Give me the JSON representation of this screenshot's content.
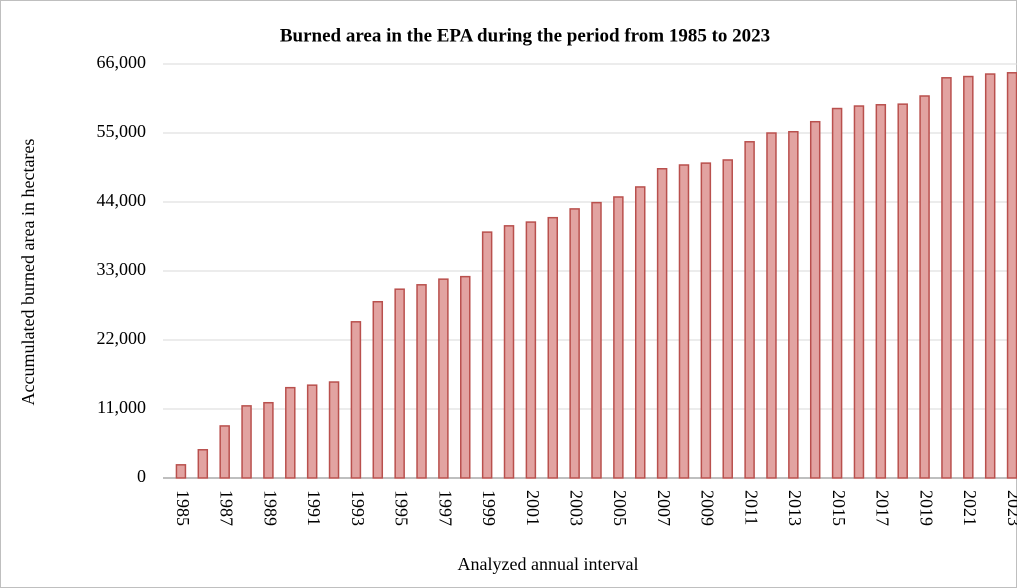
{
  "chart_data": {
    "type": "bar",
    "title": "Burned area in the EPA during the period from 1985 to 2023",
    "x_label": "Analyzed annual interval",
    "y_label": "Accumulated burned area in hectares",
    "categories": [
      "1985",
      null,
      "1987",
      null,
      "1989",
      null,
      "1991",
      null,
      "1993",
      null,
      "1995",
      null,
      "1997",
      null,
      "1999",
      null,
      "2001",
      null,
      "2003",
      null,
      "2005",
      null,
      "2007",
      null,
      "2009",
      null,
      "2011",
      null,
      "2013",
      null,
      "2015",
      null,
      "2017",
      null,
      "2019",
      null,
      "2021",
      null,
      "2023"
    ],
    "values": [
      2100,
      4500,
      8300,
      11500,
      12000,
      14400,
      14800,
      15300,
      24900,
      28100,
      30100,
      30800,
      31700,
      32100,
      39200,
      40200,
      40800,
      41500,
      42900,
      43900,
      44800,
      46400,
      49300,
      49900,
      50200,
      50700,
      53600,
      55000,
      55200,
      56800,
      58900,
      59300,
      59500,
      59600,
      60900,
      63800,
      64000,
      64400,
      64600
    ],
    "color": "#e2a3a1",
    "edge_color": "#b9504d",
    "ylim": [
      0,
      66000
    ],
    "yticks": [
      0,
      {
        "value": 11000,
        "label": "11,000"
      },
      {
        "value": 22000,
        "label": "22,000"
      },
      {
        "value": 33000,
        "label": "33,000"
      },
      {
        "value": 44000,
        "label": "44,000"
      },
      {
        "value": 55000,
        "label": "55,000"
      },
      {
        "value": 66000,
        "label": "66,000"
      }
    ],
    "grid": true
  }
}
